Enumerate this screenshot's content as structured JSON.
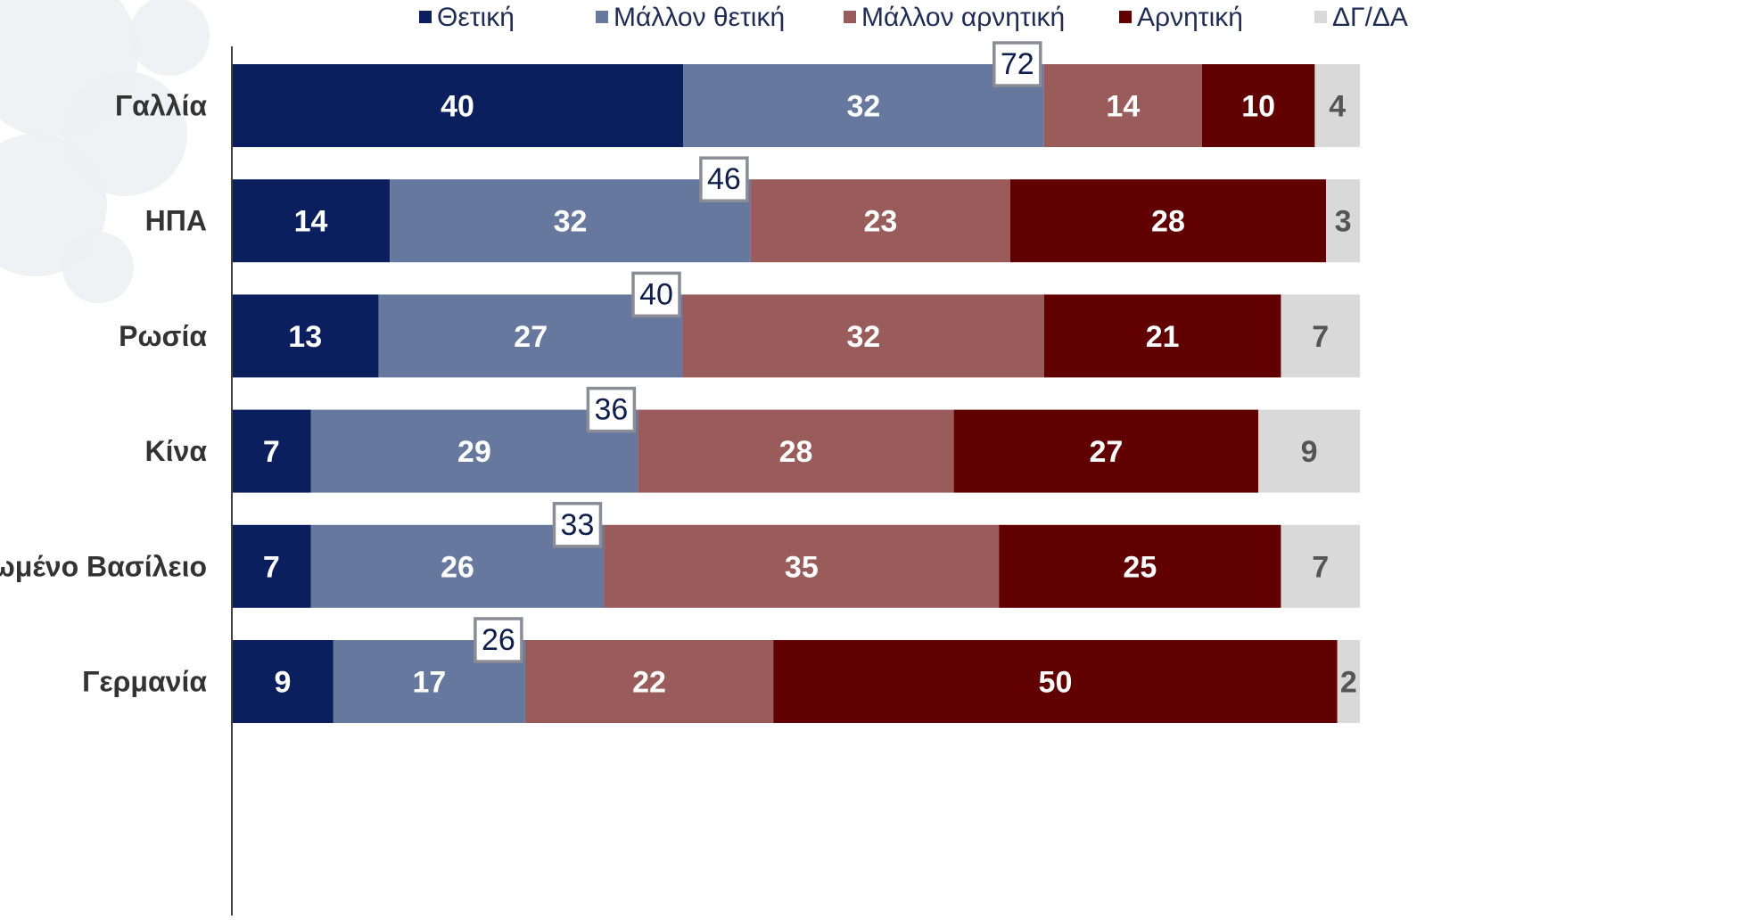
{
  "chart_data": {
    "type": "bar",
    "orientation": "horizontal",
    "stacked": true,
    "title": "",
    "xlabel": "",
    "ylabel": "",
    "xlim": [
      0,
      100
    ],
    "grid": false,
    "legend_position": "top",
    "categories": [
      "Γαλλία",
      "ΗΠΑ",
      "Ρωσία",
      "Κίνα",
      "Ηνωμένο Βασίλειο",
      "Γερμανία"
    ],
    "series": [
      {
        "name": "Θετική",
        "color": "#0b1f5e",
        "label_color": "#ffffff",
        "values": [
          40,
          14,
          13,
          7,
          7,
          9
        ]
      },
      {
        "name": "Μάλλον θετική",
        "color": "#66789e",
        "label_color": "#ffffff",
        "values": [
          32,
          32,
          27,
          29,
          26,
          17
        ]
      },
      {
        "name": "Μάλλον αρνητική",
        "color": "#995c5b",
        "label_color": "#ffffff",
        "values": [
          14,
          23,
          32,
          28,
          35,
          22
        ]
      },
      {
        "name": "Αρνητική",
        "color": "#600000",
        "label_color": "#ffffff",
        "values": [
          10,
          28,
          21,
          27,
          25,
          50
        ]
      },
      {
        "name": "ΔΓ/ΔΑ",
        "color": "#d9d9d9",
        "label_color": "#555555",
        "values": [
          4,
          3,
          7,
          9,
          7,
          2
        ]
      }
    ],
    "positive_totals": [
      72,
      46,
      40,
      36,
      33,
      26
    ],
    "total_box_style": {
      "border_color": "#8c8c96",
      "background": "#ffffff",
      "text_color": "#0f1f4d"
    },
    "axis_color": "#404040"
  }
}
